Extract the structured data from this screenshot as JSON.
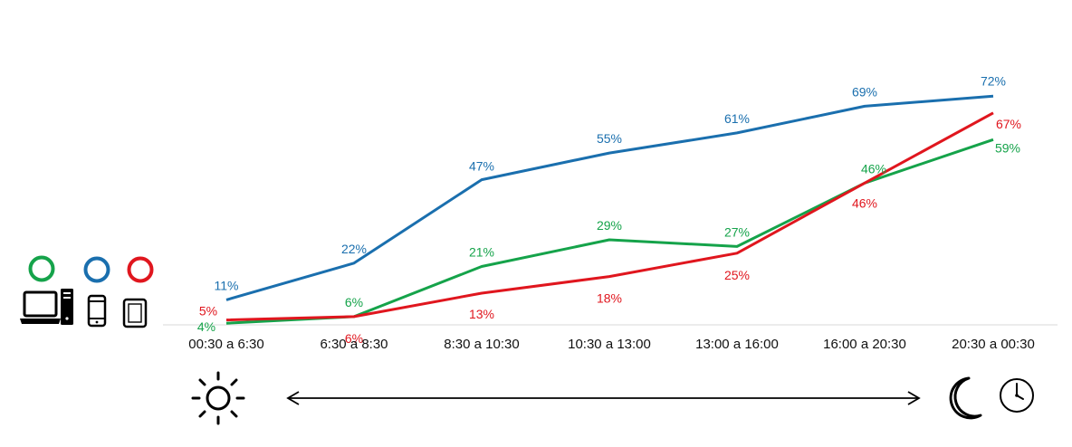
{
  "chart_data": {
    "type": "line",
    "categories": [
      "00:30 a 6:30",
      "6:30 a 8:30",
      "8:30 a 10:30",
      "10:30 a 13:00",
      "13:00 a 16:00",
      "16:00 a 20:30",
      "20:30 a 00:30"
    ],
    "series": [
      {
        "color": "#1a6fae",
        "values": [
          11,
          22,
          47,
          55,
          61,
          69,
          72
        ],
        "labels": [
          "11%",
          "22%",
          "47%",
          "55%",
          "61%",
          "69%",
          "72%"
        ]
      },
      {
        "color": "#15a34a",
        "values": [
          4,
          6,
          21,
          29,
          27,
          46,
          59
        ],
        "labels": [
          "4%",
          "6%",
          "21%",
          "29%",
          "27%",
          "46%",
          "59%"
        ]
      },
      {
        "color": "#e0161e",
        "values": [
          5,
          6,
          13,
          18,
          25,
          46,
          67
        ],
        "labels": [
          "5%",
          "6%",
          "13%",
          "18%",
          "25%",
          "46%",
          "67%"
        ]
      }
    ],
    "ylim": [
      0,
      80
    ],
    "grid": false,
    "legend": {
      "position": "left",
      "entries": [
        {
          "color": "#15a34a",
          "icon": "desktop-computer-icon"
        },
        {
          "color": "#1a6fae",
          "icon": "smartphone-icon"
        },
        {
          "color": "#e0161e",
          "icon": "tablet-icon"
        }
      ]
    },
    "timeline": {
      "start_icon": "sun-icon",
      "end_icons": [
        "moon-icon",
        "clock-icon"
      ],
      "arrow": "double-headed"
    }
  }
}
